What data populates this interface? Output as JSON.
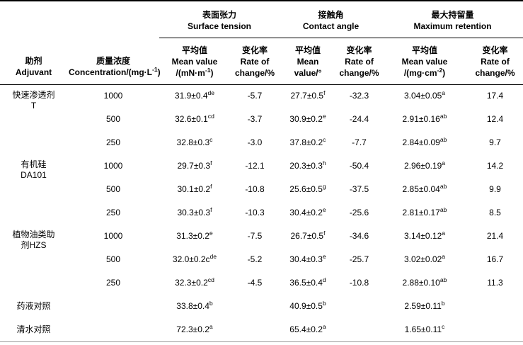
{
  "meta": {
    "background": "#ffffff",
    "text_color": "#000000",
    "rule_color": "#000000",
    "bottom_rule_color": "#9c9c9c"
  },
  "table": {
    "header": {
      "adjuvant": {
        "zh": "助剂",
        "en": "Adjuvant"
      },
      "concentration": {
        "zh": "质量浓度",
        "en": "Concentration/(mg·L{-1})"
      },
      "groups": [
        {
          "zh": "表面张力",
          "en": "Surface tension",
          "mean": {
            "zh": "平均值",
            "en": "Mean value",
            "unit": "/(mN·m{-1})"
          },
          "rate": {
            "zh": "变化率",
            "en": "Rate of",
            "unit": "change/%"
          }
        },
        {
          "zh": "接触角",
          "en": "Contact angle",
          "mean": {
            "zh": "平均值",
            "en": "Mean",
            "unit": "value/°"
          },
          "rate": {
            "zh": "变化率",
            "en": "Rate of",
            "unit": "change/%"
          }
        },
        {
          "zh": "最大持留量",
          "en": "Maximum retention",
          "mean": {
            "zh": "平均值",
            "en": "Mean value",
            "unit": "/(mg·cm{-2})"
          },
          "rate": {
            "zh": "变化率",
            "en": "Rate of",
            "unit": "change/%"
          }
        }
      ]
    },
    "rows": [
      {
        "adjuvant": {
          "label": "快速渗透剂\nT",
          "span": 3
        },
        "concentration": "1000",
        "cells": [
          "31.9±0.4{de}",
          "-5.7",
          "27.7±0.5{f}",
          "-32.3",
          "3.04±0.05{a}",
          "17.4"
        ]
      },
      {
        "concentration": "500",
        "cells": [
          "32.6±0.1{cd}",
          "-3.7",
          "30.9±0.2{e}",
          "-24.4",
          "2.91±0.16{ab}",
          "12.4"
        ]
      },
      {
        "concentration": "250",
        "cells": [
          "32.8±0.3{c}",
          "-3.0",
          "37.8±0.2{c}",
          "-7.7",
          "2.84±0.09{ab}",
          "9.7"
        ]
      },
      {
        "adjuvant": {
          "label": "有机硅\nDA101",
          "span": 3
        },
        "concentration": "1000",
        "cells": [
          "29.7±0.3{f}",
          "-12.1",
          "20.3±0.3{h}",
          "-50.4",
          "2.96±0.19{a}",
          "14.2"
        ]
      },
      {
        "concentration": "500",
        "cells": [
          "30.1±0.2{f}",
          "-10.8",
          "25.6±0.5{g}",
          "-37.5",
          "2.85±0.04{ab}",
          "9.9"
        ]
      },
      {
        "concentration": "250",
        "cells": [
          "30.3±0.3{f}",
          "-10.3",
          "30.4±0.2{e}",
          "-25.6",
          "2.81±0.17{ab}",
          "8.5"
        ]
      },
      {
        "adjuvant": {
          "label": "植物油类助\n剂HZS",
          "span": 3
        },
        "concentration": "1000",
        "cells": [
          "31.3±0.2{e}",
          "-7.5",
          "26.7±0.5{f}",
          "-34.6",
          "3.14±0.12{a}",
          "21.4"
        ]
      },
      {
        "concentration": "500",
        "cells": [
          "32.0±0.2c{de}",
          "-5.2",
          "30.4±0.3{e}",
          "-25.7",
          "3.02±0.02{a}",
          "16.7"
        ]
      },
      {
        "concentration": "250",
        "cells": [
          "32.3±0.2{cd}",
          "-4.5",
          "36.5±0.4{d}",
          "-10.8",
          "2.88±0.10{ab}",
          "11.3"
        ]
      },
      {
        "adjuvant": {
          "label": "药液对照",
          "span": 1
        },
        "concentration": "",
        "cells": [
          "33.8±0.4{b}",
          "",
          "40.9±0.5{b}",
          "",
          "2.59±0.11{b}",
          ""
        ]
      },
      {
        "adjuvant": {
          "label": "清水对照",
          "span": 1
        },
        "concentration": "",
        "cells": [
          "72.3±0.2{a}",
          "",
          "65.4±0.2{a}",
          "",
          "1.65±0.11{c}",
          ""
        ]
      }
    ]
  }
}
